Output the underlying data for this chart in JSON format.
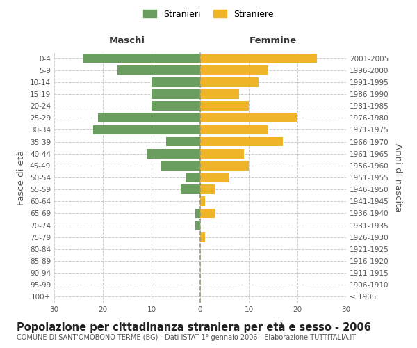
{
  "age_groups": [
    "100+",
    "95-99",
    "90-94",
    "85-89",
    "80-84",
    "75-79",
    "70-74",
    "65-69",
    "60-64",
    "55-59",
    "50-54",
    "45-49",
    "40-44",
    "35-39",
    "30-34",
    "25-29",
    "20-24",
    "15-19",
    "10-14",
    "5-9",
    "0-4"
  ],
  "birth_years": [
    "≤ 1905",
    "1906-1910",
    "1911-1915",
    "1916-1920",
    "1921-1925",
    "1926-1930",
    "1931-1935",
    "1936-1940",
    "1941-1945",
    "1946-1950",
    "1951-1955",
    "1956-1960",
    "1961-1965",
    "1966-1970",
    "1971-1975",
    "1976-1980",
    "1981-1985",
    "1986-1990",
    "1991-1995",
    "1996-2000",
    "2001-2005"
  ],
  "maschi": [
    0,
    0,
    0,
    0,
    0,
    0,
    1,
    1,
    0,
    4,
    3,
    8,
    11,
    7,
    22,
    21,
    10,
    10,
    10,
    17,
    24
  ],
  "femmine": [
    0,
    0,
    0,
    0,
    0,
    1,
    0,
    3,
    1,
    3,
    6,
    10,
    9,
    17,
    14,
    20,
    10,
    8,
    12,
    14,
    24
  ],
  "male_color": "#6a9e5e",
  "female_color": "#f0b429",
  "bar_height": 0.8,
  "xlim": 30,
  "title": "Popolazione per cittadinanza straniera per età e sesso - 2006",
  "subtitle": "COMUNE DI SANT'OMOBONO TERME (BG) - Dati ISTAT 1° gennaio 2006 - Elaborazione TUTTITALIA.IT",
  "xlabel_left": "Maschi",
  "xlabel_right": "Femmine",
  "ylabel_left": "Fasce di età",
  "ylabel_right": "Anni di nascita",
  "legend_male": "Stranieri",
  "legend_female": "Straniere",
  "background_color": "#ffffff",
  "grid_color": "#cccccc",
  "tick_fontsize": 7.5,
  "label_fontsize": 9.5,
  "title_fontsize": 10.5,
  "subtitle_fontsize": 7.0
}
